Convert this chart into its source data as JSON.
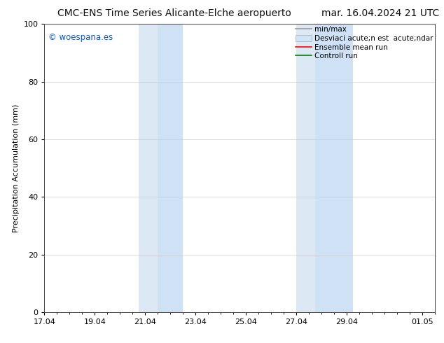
{
  "title_left": "CMC-ENS Time Series Alicante-Elche aeropuerto",
  "title_right": "mar. 16.04.2024 21 UTC",
  "ylabel": "Precipitation Accumulation (mm)",
  "ylim": [
    0,
    100
  ],
  "yticks": [
    0,
    20,
    40,
    60,
    80,
    100
  ],
  "xtick_labels": [
    "17.04",
    "19.04",
    "21.04",
    "23.04",
    "25.04",
    "27.04",
    "29.04",
    "01.05"
  ],
  "xtick_positions": [
    0,
    2,
    4,
    6,
    8,
    10,
    12,
    15
  ],
  "xlim": [
    0,
    15.5
  ],
  "shaded_regions": [
    {
      "start": 3.75,
      "end": 4.5,
      "color": "#dce9f5"
    },
    {
      "start": 4.5,
      "end": 5.5,
      "color": "#cfe1f5"
    },
    {
      "start": 10.0,
      "end": 10.75,
      "color": "#dce9f5"
    },
    {
      "start": 10.75,
      "end": 12.25,
      "color": "#cfe1f5"
    }
  ],
  "watermark_text": "© woespana.es",
  "watermark_color": "#1155bb",
  "background_color": "#ffffff",
  "grid_color": "#cccccc",
  "title_fontsize": 10,
  "tick_fontsize": 8,
  "ylabel_fontsize": 8,
  "legend_fontsize": 7.5,
  "legend_label_1": "min/max",
  "legend_label_2": "Desviaci acute;n est  acute;ndar",
  "legend_label_3": "Ensemble mean run",
  "legend_label_4": "Controll run",
  "legend_color_1": "#999999",
  "legend_color_2": "#cccccc",
  "legend_color_3": "red",
  "legend_color_4": "green",
  "spine_color": "#444444"
}
